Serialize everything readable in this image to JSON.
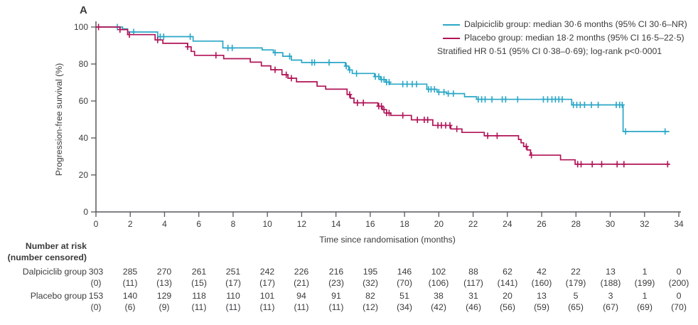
{
  "panel_label": "A",
  "colors": {
    "dalpiciclib": "#2AA7C7",
    "placebo": "#B11357",
    "axis": "#57585A",
    "text": "#3B3B3D"
  },
  "legend": {
    "entries": [
      {
        "name": "Dalpiciclib group",
        "label": "Dalpiciclib group: median 30·6 months (95% CI 30·6–NR)",
        "color": "#2AA7C7"
      },
      {
        "name": "Placebo group",
        "label": "Placebo group: median 18·2 months (95% CI 16·5–22·5)",
        "color": "#B11357"
      }
    ],
    "note": "Stratified HR 0·51 (95% CI 0·38–0·69); log-rank p<0·0001"
  },
  "chart_data": {
    "type": "line",
    "subtype": "kaplan-meier-step",
    "title": "",
    "xlabel": "Time since randomisation (months)",
    "ylabel": "Progression-free survival (%)",
    "xlim": [
      0,
      34
    ],
    "ylim": [
      0,
      100
    ],
    "xticks": [
      0,
      2,
      4,
      6,
      8,
      10,
      12,
      14,
      16,
      18,
      20,
      22,
      24,
      26,
      28,
      30,
      32,
      34
    ],
    "yticks": [
      0,
      20,
      40,
      60,
      80,
      100
    ],
    "grid": false,
    "legend_position": "top-right",
    "series": [
      {
        "name": "Dalpiciclib group",
        "color": "#2AA7C7",
        "points": [
          [
            0,
            100
          ],
          [
            1.55,
            99.0
          ],
          [
            1.85,
            97.3
          ],
          [
            3.6,
            94.8
          ],
          [
            5.67,
            92.4
          ],
          [
            7.4,
            88.7
          ],
          [
            9.7,
            87.6
          ],
          [
            10.35,
            86.1
          ],
          [
            10.9,
            84.2
          ],
          [
            11.4,
            82.1
          ],
          [
            12.0,
            80.8
          ],
          [
            14.55,
            78.9
          ],
          [
            14.75,
            76.8
          ],
          [
            14.95,
            74.9
          ],
          [
            16.25,
            73.2
          ],
          [
            16.6,
            71.6
          ],
          [
            16.9,
            70.2
          ],
          [
            17.15,
            69.1
          ],
          [
            19.3,
            66.3
          ],
          [
            19.9,
            64.8
          ],
          [
            20.45,
            64.0
          ],
          [
            21.5,
            62.3
          ],
          [
            22.2,
            60.9
          ],
          [
            27.75,
            57.9
          ],
          [
            30.75,
            43.5
          ],
          [
            33.45,
            43.5
          ]
        ],
        "censor_x": [
          1.25,
          2.2,
          3.75,
          3.95,
          5.5,
          7.7,
          7.95,
          10.45,
          11.3,
          12.6,
          12.75,
          13.6,
          14.6,
          14.8,
          15.2,
          16.3,
          16.5,
          16.65,
          16.8,
          16.95,
          17.1,
          17.9,
          18.15,
          18.45,
          18.7,
          19.4,
          19.55,
          19.75,
          20.0,
          20.3,
          20.55,
          20.85,
          22.3,
          22.5,
          22.7,
          23.1,
          23.7,
          23.9,
          24.6,
          26.1,
          26.35,
          26.6,
          26.8,
          27.0,
          27.2,
          27.85,
          28.05,
          28.25,
          28.5,
          28.9,
          29.3,
          30.35,
          30.55,
          30.7,
          30.9,
          33.2
        ]
      },
      {
        "name": "Placebo group",
        "color": "#B11357",
        "points": [
          [
            0,
            100
          ],
          [
            1.4,
            98.6
          ],
          [
            1.85,
            95.9
          ],
          [
            3.45,
            93.0
          ],
          [
            3.9,
            91.2
          ],
          [
            5.35,
            89.3
          ],
          [
            5.55,
            86.8
          ],
          [
            5.75,
            84.7
          ],
          [
            7.45,
            82.9
          ],
          [
            9.0,
            81.0
          ],
          [
            9.65,
            79.0
          ],
          [
            10.2,
            76.9
          ],
          [
            10.85,
            74.2
          ],
          [
            11.2,
            72.3
          ],
          [
            11.7,
            70.4
          ],
          [
            12.9,
            68.0
          ],
          [
            13.4,
            66.4
          ],
          [
            14.65,
            63.5
          ],
          [
            14.85,
            61.5
          ],
          [
            15.05,
            59.0
          ],
          [
            16.45,
            57.2
          ],
          [
            16.7,
            55.3
          ],
          [
            16.95,
            53.5
          ],
          [
            17.2,
            52.2
          ],
          [
            18.4,
            49.8
          ],
          [
            19.65,
            46.8
          ],
          [
            20.7,
            44.9
          ],
          [
            21.35,
            43.0
          ],
          [
            22.65,
            41.2
          ],
          [
            24.65,
            39.2
          ],
          [
            24.8,
            37.4
          ],
          [
            24.95,
            35.4
          ],
          [
            25.15,
            33.5
          ],
          [
            25.35,
            30.7
          ],
          [
            27.1,
            28.2
          ],
          [
            27.95,
            25.8
          ],
          [
            33.45,
            25.8
          ]
        ],
        "censor_x": [
          0.15,
          1.4,
          1.95,
          3.6,
          5.35,
          7.0,
          10.45,
          11.1,
          11.4,
          14.8,
          15.25,
          15.6,
          16.5,
          16.65,
          16.8,
          16.95,
          17.1,
          17.9,
          18.75,
          19.15,
          19.35,
          19.95,
          20.15,
          20.4,
          20.65,
          21.05,
          22.85,
          23.4,
          25.1,
          25.4,
          28.1,
          28.3,
          28.95,
          29.5,
          30.4,
          30.8,
          33.35
        ]
      }
    ]
  },
  "risk_table": {
    "header_line1": "Number at risk",
    "header_line2": "(number censored)",
    "timepoints": [
      0,
      2,
      4,
      6,
      8,
      10,
      12,
      14,
      16,
      18,
      20,
      22,
      24,
      26,
      28,
      30,
      32,
      34
    ],
    "rows": [
      {
        "label": "Dalpiciclib group",
        "at_risk": [
          "303",
          "285",
          "270",
          "261",
          "251",
          "242",
          "226",
          "216",
          "195",
          "146",
          "102",
          "88",
          "62",
          "42",
          "22",
          "13",
          "1",
          "0"
        ],
        "censored": [
          "(0)",
          "(11)",
          "(13)",
          "(15)",
          "(17)",
          "(17)",
          "(21)",
          "(23)",
          "(32)",
          "(70)",
          "(106)",
          "(117)",
          "(141)",
          "(160)",
          "(179)",
          "(188)",
          "(199)",
          "(200)"
        ]
      },
      {
        "label": "Placebo group",
        "at_risk": [
          "153",
          "140",
          "129",
          "118",
          "110",
          "101",
          "94",
          "91",
          "82",
          "51",
          "38",
          "31",
          "20",
          "13",
          "5",
          "3",
          "1",
          "0"
        ],
        "censored": [
          "(0)",
          "(6)",
          "(9)",
          "(11)",
          "(11)",
          "(11)",
          "(11)",
          "(11)",
          "(12)",
          "(34)",
          "(42)",
          "(46)",
          "(56)",
          "(59)",
          "(65)",
          "(67)",
          "(69)",
          "(70)"
        ]
      }
    ]
  }
}
